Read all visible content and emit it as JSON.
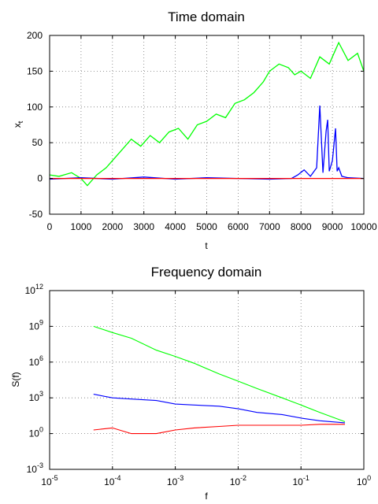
{
  "colors": {
    "green": "#00ff00",
    "blue": "#0000ff",
    "red": "#ff0000",
    "background": "#ffffff",
    "grid": "#777777"
  },
  "chart_data": [
    {
      "type": "line",
      "title": "Time domain",
      "xlabel": "t",
      "ylabel": "x",
      "ylabel_sub": "t",
      "xlim": [
        0,
        10000
      ],
      "ylim": [
        -50,
        200
      ],
      "x_ticks": [
        0,
        1000,
        2000,
        3000,
        4000,
        5000,
        6000,
        7000,
        8000,
        9000,
        10000
      ],
      "y_ticks": [
        -50,
        0,
        50,
        100,
        150,
        200
      ],
      "x_tick_labels": [
        "0",
        "1000",
        "2000",
        "3000",
        "4000",
        "5000",
        "6000",
        "7000",
        "8000",
        "9000",
        "10000"
      ],
      "y_tick_labels": [
        "-50",
        "0",
        "50",
        "100",
        "150",
        "200"
      ],
      "grid": true,
      "series": [
        {
          "color": "#00ff00",
          "x": [
            0,
            300,
            700,
            1000,
            1200,
            1500,
            1800,
            2000,
            2300,
            2600,
            2900,
            3200,
            3500,
            3800,
            4100,
            4400,
            4700,
            5000,
            5300,
            5600,
            5900,
            6200,
            6500,
            6800,
            7000,
            7300,
            7600,
            7800,
            8000,
            8300,
            8600,
            8900,
            9200,
            9500,
            9800,
            10000
          ],
          "y": [
            5,
            3,
            8,
            0,
            -10,
            5,
            15,
            25,
            40,
            55,
            45,
            60,
            50,
            65,
            70,
            55,
            75,
            80,
            90,
            85,
            105,
            110,
            120,
            135,
            150,
            160,
            155,
            145,
            150,
            140,
            170,
            160,
            190,
            165,
            175,
            150
          ]
        },
        {
          "color": "#0000ff",
          "x": [
            0,
            1000,
            2000,
            3000,
            4000,
            5000,
            6000,
            7000,
            7700,
            7900,
            8100,
            8300,
            8500,
            8600,
            8700,
            8800,
            8850,
            8900,
            9000,
            9100,
            9150,
            9200,
            9300,
            9500,
            10000
          ],
          "y": [
            -1,
            1,
            -1,
            2,
            -1,
            1,
            0,
            -1,
            0,
            5,
            12,
            3,
            15,
            102,
            8,
            66,
            82,
            10,
            25,
            70,
            10,
            15,
            3,
            1,
            0
          ]
        },
        {
          "color": "#ff0000",
          "x": [
            0,
            1000,
            2000,
            3000,
            4000,
            5000,
            6000,
            7000,
            8000,
            9000,
            10000
          ],
          "y": [
            0,
            0,
            0,
            0,
            0,
            0,
            0,
            0,
            0,
            0,
            0
          ]
        }
      ]
    },
    {
      "type": "line",
      "title": "Frequency domain",
      "xlabel": "f",
      "ylabel": "S(f)",
      "x_scale": "log",
      "y_scale": "log",
      "xlim": [
        1e-05,
        1
      ],
      "ylim": [
        0.001,
        1000000000000.0
      ],
      "x_tick_labels": [
        "10-5",
        "10-4",
        "10-3",
        "10-2",
        "10-1",
        "100"
      ],
      "y_tick_labels": [
        "10-3",
        "100",
        "103",
        "106",
        "109",
        "1012"
      ],
      "grid": true,
      "series": [
        {
          "color": "#00ff00",
          "x": [
            5e-05,
            0.0001,
            0.0002,
            0.0005,
            0.001,
            0.002,
            0.005,
            0.01,
            0.02,
            0.05,
            0.1,
            0.2,
            0.5
          ],
          "y": [
            1000000000.0,
            300000000.0,
            100000000.0,
            10000000.0,
            3000000.0,
            800000.0,
            100000.0,
            25000.0,
            6000,
            1000,
            250,
            60,
            10
          ]
        },
        {
          "color": "#0000ff",
          "x": [
            5e-05,
            0.0001,
            0.0002,
            0.0005,
            0.001,
            0.002,
            0.005,
            0.01,
            0.02,
            0.05,
            0.1,
            0.2,
            0.5
          ],
          "y": [
            2000,
            1000,
            800,
            600,
            300,
            250,
            200,
            120,
            60,
            40,
            20,
            12,
            8
          ]
        },
        {
          "color": "#ff0000",
          "x": [
            5e-05,
            0.0001,
            0.0002,
            0.0005,
            0.001,
            0.002,
            0.005,
            0.01,
            0.02,
            0.05,
            0.1,
            0.2,
            0.5
          ],
          "y": [
            2,
            3,
            1,
            1,
            2,
            3,
            4,
            5,
            5,
            5,
            5,
            6,
            6
          ]
        }
      ]
    }
  ]
}
